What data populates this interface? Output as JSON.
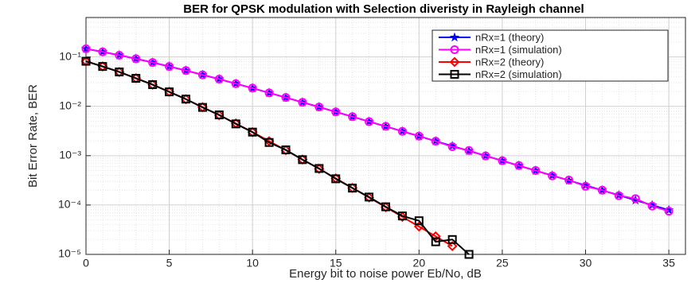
{
  "chart_data": {
    "type": "line",
    "title": "BER for QPSK modulation with Selection diveristy in Rayleigh channel",
    "x_label": "Energy bit to noise power Eb/No, dB",
    "y_label": "Bit Error Rate, BER",
    "x": [
      0,
      1,
      2,
      3,
      4,
      5,
      6,
      7,
      8,
      9,
      10,
      11,
      12,
      13,
      14,
      15,
      16,
      17,
      18,
      19,
      20,
      21,
      22,
      23,
      24,
      25,
      26,
      27,
      28,
      29,
      30,
      31,
      32,
      33,
      34,
      35
    ],
    "series": [
      {
        "name": "nRx=1 (theory)",
        "color": "#0000ff",
        "marker": "star",
        "values": [
          0.1464,
          0.1267,
          0.1085,
          0.0919,
          0.0771,
          0.0642,
          0.053,
          0.0435,
          0.0355,
          0.0288,
          0.0233,
          0.01874,
          0.01506,
          0.01207,
          0.00966,
          0.00772,
          0.00616,
          0.00491,
          0.00391,
          0.00312,
          0.00248,
          0.00197,
          0.00157,
          0.00125,
          0.000993,
          0.000789,
          0.000627,
          0.000498,
          0.000396,
          0.000315,
          0.00025,
          0.000199,
          0.000158,
          0.000125,
          9.95e-05,
          7.9e-05
        ]
      },
      {
        "name": "nRx=1 (simulation)",
        "color": "#ff00ff",
        "marker": "circle",
        "values": [
          0.1462,
          0.1269,
          0.1083,
          0.0921,
          0.0772,
          0.0641,
          0.0531,
          0.0434,
          0.0356,
          0.0287,
          0.0234,
          0.0187,
          0.01508,
          0.01205,
          0.00968,
          0.0077,
          0.00618,
          0.0049,
          0.00393,
          0.00311,
          0.00249,
          0.00196,
          0.00152,
          0.00127,
          0.00099,
          0.00079,
          0.00063,
          0.0005,
          0.00039,
          0.00032,
          0.00024,
          0.0002,
          0.000155,
          0.000135,
          9.5e-05,
          7.5e-05
        ]
      },
      {
        "name": "nRx=2 (theory)",
        "color": "#ff0000",
        "marker": "diamond",
        "values": [
          0.0816,
          0.0643,
          0.0495,
          0.0371,
          0.0274,
          0.0197,
          0.0139,
          0.0096,
          0.0066,
          0.0045,
          0.003,
          0.00197,
          0.00129,
          0.000836,
          0.00054,
          0.000347,
          0.000222,
          0.000142,
          9.05e-05,
          5.76e-05,
          3.66e-05,
          2.32e-05,
          1.47e-05,
          null,
          null,
          null,
          null,
          null,
          null,
          null,
          null,
          null,
          null,
          null,
          null,
          null
        ]
      },
      {
        "name": "nRx=2 (simulation)",
        "color": "#000000",
        "marker": "square",
        "values": [
          0.0818,
          0.0641,
          0.0497,
          0.0369,
          0.0275,
          0.0196,
          0.014,
          0.0095,
          0.0067,
          0.0044,
          0.003,
          0.00185,
          0.00131,
          0.00083,
          0.00055,
          0.00034,
          0.00022,
          0.000145,
          9.2e-05,
          6e-05,
          4.8e-05,
          1.8e-05,
          2e-05,
          1e-05,
          null,
          null,
          null,
          null,
          null,
          null,
          null,
          null,
          null,
          null,
          null,
          null
        ]
      }
    ],
    "xlim": [
      0,
      36
    ],
    "xticks": [
      0,
      5,
      10,
      15,
      20,
      25,
      30,
      35
    ],
    "ylim": [
      1e-05,
      0.63
    ],
    "log_y": true,
    "yticks": [
      {
        "value": 1e-05,
        "label": "10⁻⁵"
      },
      {
        "value": 0.0001,
        "label": "10⁻⁴"
      },
      {
        "value": 0.001,
        "label": "10⁻³"
      },
      {
        "value": 0.01,
        "label": "10⁻²"
      },
      {
        "value": 0.1,
        "label": "10⁻¹"
      }
    ],
    "grid": true,
    "minor_grid": true,
    "legend": "top-right"
  }
}
